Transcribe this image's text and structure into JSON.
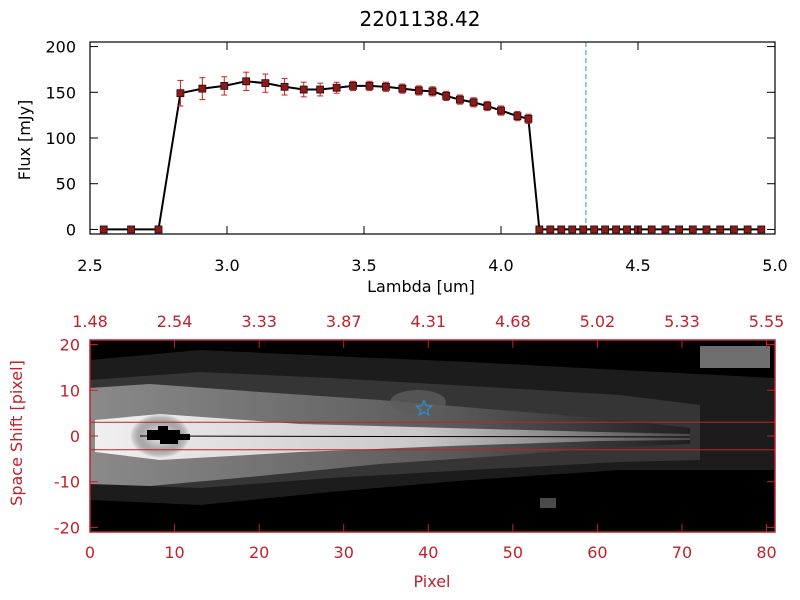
{
  "chart_data": [
    {
      "type": "line",
      "title": "2201138.42",
      "xlabel": "Lambda [um]",
      "ylabel": "Flux [mJy]",
      "xlim": [
        2.5,
        5.0
      ],
      "ylim": [
        -5,
        205
      ],
      "xticks": [
        "2.5",
        "3.0",
        "3.5",
        "4.0",
        "4.5",
        "5.0"
      ],
      "yticks": [
        "0",
        "50",
        "100",
        "150",
        "200"
      ],
      "series_color": "#000000",
      "marker_color": "#8b1a1a",
      "error_color": "#d02020",
      "vline_x": 4.31,
      "vline_color": "#2a8fd0",
      "x": [
        2.55,
        2.65,
        2.75,
        2.83,
        2.91,
        2.99,
        3.07,
        3.14,
        3.21,
        3.28,
        3.34,
        3.4,
        3.46,
        3.52,
        3.58,
        3.64,
        3.7,
        3.75,
        3.8,
        3.85,
        3.9,
        3.95,
        4.0,
        4.06,
        4.1,
        4.14,
        4.18,
        4.22,
        4.26,
        4.3,
        4.34,
        4.38,
        4.42,
        4.46,
        4.5,
        4.55,
        4.6,
        4.65,
        4.7,
        4.75,
        4.8,
        4.85,
        4.9,
        4.95
      ],
      "y": [
        0,
        0,
        0,
        149,
        154,
        157,
        162,
        160,
        156,
        153,
        153,
        155,
        157,
        157,
        156,
        154,
        152,
        151,
        146,
        142,
        139,
        135,
        130,
        124,
        121,
        0,
        0,
        0,
        0,
        0,
        0,
        0,
        0,
        0,
        0,
        0,
        0,
        0,
        0,
        0,
        0,
        0,
        0,
        0
      ],
      "yerr": [
        0,
        0,
        0,
        14,
        12,
        10,
        10,
        10,
        9,
        8,
        7,
        6,
        5,
        5,
        5,
        5,
        5,
        5,
        5,
        5,
        5,
        5,
        5,
        5,
        5,
        0,
        0,
        0,
        0,
        0,
        0,
        0,
        0,
        0,
        0,
        0,
        0,
        0,
        0,
        0,
        0,
        0,
        0,
        0
      ]
    },
    {
      "type": "heatmap",
      "xlabel": "Pixel",
      "ylabel": "Space Shift [pixel]",
      "xlim": [
        0,
        81
      ],
      "ylim": [
        -21,
        21
      ],
      "xticks": [
        "0",
        "10",
        "20",
        "30",
        "40",
        "50",
        "60",
        "70",
        "80"
      ],
      "yticks": [
        "-20",
        "-10",
        "0",
        "10",
        "20"
      ],
      "top_xtick_labels": [
        "1.48",
        "2.54",
        "3.33",
        "3.87",
        "4.31",
        "4.68",
        "5.02",
        "5.33",
        "5.55"
      ],
      "axis_color": "#c0222a",
      "aperture_lines_y": [
        3,
        -3
      ],
      "trace_x_range": [
        6,
        69
      ],
      "star_marker": {
        "x": 39.5,
        "y": 6
      },
      "star_color": "#2a8fd0"
    }
  ]
}
